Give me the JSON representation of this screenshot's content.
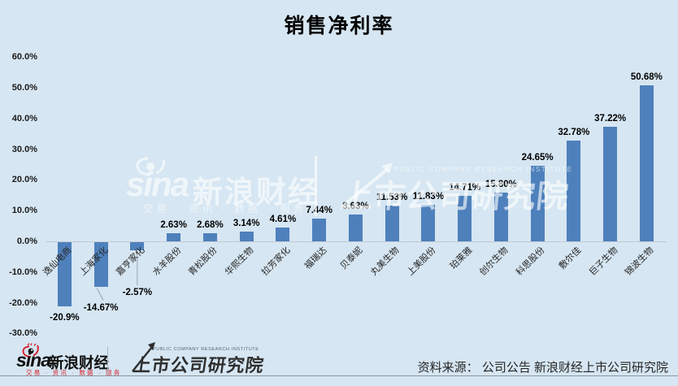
{
  "title": "销售净利率",
  "chart_data": {
    "type": "bar",
    "title": "销售净利率",
    "categories": [
      "逸仙电商",
      "上海家化",
      "嘉亨家化",
      "水羊股份",
      "青松股份",
      "华熙生物",
      "拉芳家化",
      "福瑞达",
      "贝泰妮",
      "丸美生物",
      "上美股份",
      "珀莱雅",
      "创尔生物",
      "科思股份",
      "敷尔佳",
      "巨子生物",
      "锦波生物"
    ],
    "values": [
      -20.9,
      -14.67,
      -2.57,
      2.63,
      2.68,
      3.14,
      4.61,
      7.44,
      8.63,
      11.53,
      11.83,
      14.71,
      15.8,
      24.65,
      32.78,
      37.22,
      50.68
    ],
    "labels": [
      "-20.9%",
      "-14.67%",
      "-2.57%",
      "2.63%",
      "2.68%",
      "3.14%",
      "4.61%",
      "7.44%",
      "8.63%",
      "11.53%",
      "11.83%",
      "14.71%",
      "15.80%",
      "24.65%",
      "32.78%",
      "37.22%",
      "50.68%"
    ],
    "xlabel": "",
    "ylabel": "",
    "ylim": [
      -30,
      60
    ],
    "ytick_step": 10,
    "ytick_labels": [
      "60.0%",
      "50.0%",
      "40.0%",
      "30.0%",
      "20.0%",
      "10.0%",
      "0.0%",
      "-10.0%",
      "-20.0%",
      "-30.0%"
    ],
    "grid": false,
    "legend": false,
    "bar_color": "#4E80BC",
    "background_color": "#D6E6F2",
    "axis_color": "#C3C9D2"
  },
  "watermark": {
    "sina_text": "sina",
    "brand": "新浪财经",
    "tagline": "交易 · 资讯 · 数据 · 服务",
    "institute": "上市公司研究院",
    "institute_en": "PUBLIC COMPANY RESEARCH INSTITUTE"
  },
  "footer": {
    "sina_text": "sina",
    "brand": "新浪财经",
    "tagline": "交易 · 资讯 · 数据 · 服务",
    "institute": "上市公司研究院",
    "institute_en": "PUBLIC COMPANY RESEARCH INSTITUTE",
    "source": "资料来源： 公司公告 新浪财经上市公司研究院",
    "accent_color": "#D4242E"
  }
}
